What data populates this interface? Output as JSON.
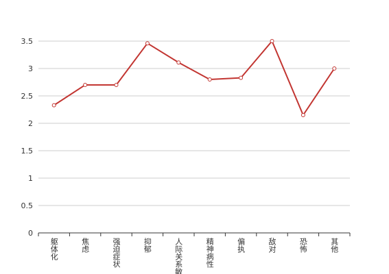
{
  "chart_data": {
    "type": "line",
    "categories": [
      "躯体化",
      "焦虑",
      "强迫症状",
      "抑郁",
      "人际关系敏感",
      "精神病性",
      "偏执",
      "敌对",
      "恐怖",
      "其他"
    ],
    "series": [
      {
        "color": "#c23531",
        "values": [
          2.33,
          2.7,
          2.7,
          3.46,
          3.11,
          2.8,
          2.83,
          3.5,
          2.15,
          3.0
        ]
      }
    ],
    "ylim": [
      0,
      3.5
    ],
    "yticks": [
      0,
      0.5,
      1,
      1.5,
      2,
      2.5,
      3,
      3.5
    ],
    "grid": true
  }
}
